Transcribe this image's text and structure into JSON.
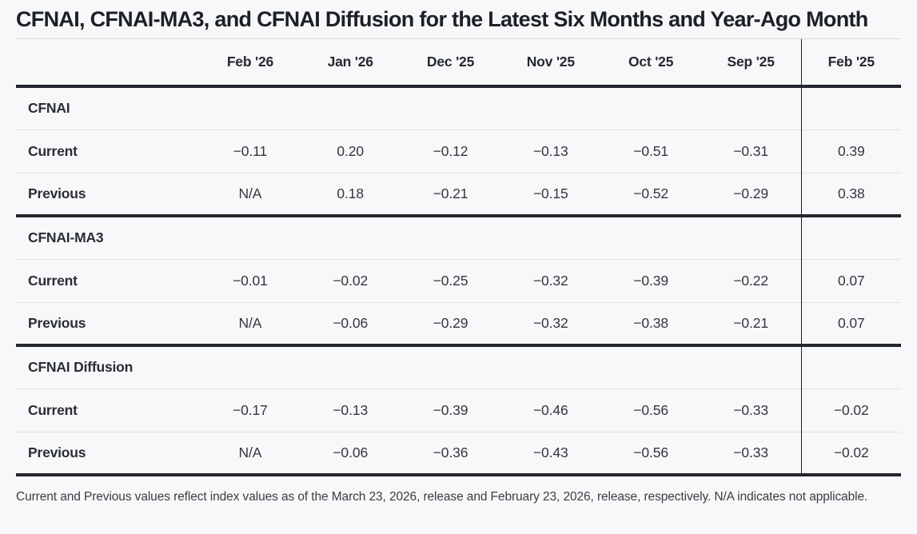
{
  "page": {
    "title": "CFNAI, CFNAI-MA3, and CFNAI Diffusion for the Latest Six Months and Year-Ago Month",
    "footnote": "Current and Previous values reflect index values as of the March 23, 2026, release and February 23, 2026, release, respectively. N/A indicates not applicable."
  },
  "table": {
    "columns": [
      "Feb '26",
      "Jan '26",
      "Dec '25",
      "Nov '25",
      "Oct '25",
      "Sep '25",
      "Feb '25"
    ],
    "sections": [
      {
        "name": "CFNAI",
        "rows": [
          {
            "label": "Current",
            "values": [
              "−0.11",
              "0.20",
              "−0.12",
              "−0.13",
              "−0.51",
              "−0.31",
              "0.39"
            ]
          },
          {
            "label": "Previous",
            "values": [
              "N/A",
              "0.18",
              "−0.21",
              "−0.15",
              "−0.52",
              "−0.29",
              "0.38"
            ]
          }
        ]
      },
      {
        "name": "CFNAI-MA3",
        "rows": [
          {
            "label": "Current",
            "values": [
              "−0.01",
              "−0.02",
              "−0.25",
              "−0.32",
              "−0.39",
              "−0.22",
              "0.07"
            ]
          },
          {
            "label": "Previous",
            "values": [
              "N/A",
              "−0.06",
              "−0.29",
              "−0.32",
              "−0.38",
              "−0.21",
              "0.07"
            ]
          }
        ]
      },
      {
        "name": "CFNAI Diffusion",
        "rows": [
          {
            "label": "Current",
            "values": [
              "−0.17",
              "−0.13",
              "−0.39",
              "−0.46",
              "−0.56",
              "−0.33",
              "−0.02"
            ]
          },
          {
            "label": "Previous",
            "values": [
              "N/A",
              "−0.06",
              "−0.36",
              "−0.43",
              "−0.56",
              "−0.33",
              "−0.02"
            ]
          }
        ]
      }
    ]
  },
  "colors": {
    "page_background": "#f7f8f9",
    "title_text": "#1d2025",
    "thick_border": "#23262d",
    "thin_border": "#e2e3e7",
    "year_ago_divider": "#17191d",
    "value_text": "#33363c",
    "footnote_text": "#3a3d42"
  },
  "chart_data": {
    "type": "table",
    "title": "CFNAI, CFNAI-MA3, and CFNAI Diffusion for the Latest Six Months and Year-Ago Month",
    "columns": [
      "Feb '26",
      "Jan '26",
      "Dec '25",
      "Nov '25",
      "Oct '25",
      "Sep '25",
      "Feb '25"
    ],
    "series": [
      {
        "name": "CFNAI Current",
        "values": [
          -0.11,
          0.2,
          -0.12,
          -0.13,
          -0.51,
          -0.31,
          0.39
        ]
      },
      {
        "name": "CFNAI Previous",
        "values": [
          null,
          0.18,
          -0.21,
          -0.15,
          -0.52,
          -0.29,
          0.38
        ]
      },
      {
        "name": "CFNAI-MA3 Current",
        "values": [
          -0.01,
          -0.02,
          -0.25,
          -0.32,
          -0.39,
          -0.22,
          0.07
        ]
      },
      {
        "name": "CFNAI-MA3 Previous",
        "values": [
          null,
          -0.06,
          -0.29,
          -0.32,
          -0.38,
          -0.21,
          0.07
        ]
      },
      {
        "name": "CFNAI Diffusion Current",
        "values": [
          -0.17,
          -0.13,
          -0.39,
          -0.46,
          -0.56,
          -0.33,
          -0.02
        ]
      },
      {
        "name": "CFNAI Diffusion Previous",
        "values": [
          null,
          -0.06,
          -0.36,
          -0.43,
          -0.56,
          -0.33,
          -0.02
        ]
      }
    ],
    "na_note": "N/A indicates not applicable",
    "footnote": "Current and Previous values reflect index values as of the March 23, 2026, release and February 23, 2026, release, respectively."
  }
}
